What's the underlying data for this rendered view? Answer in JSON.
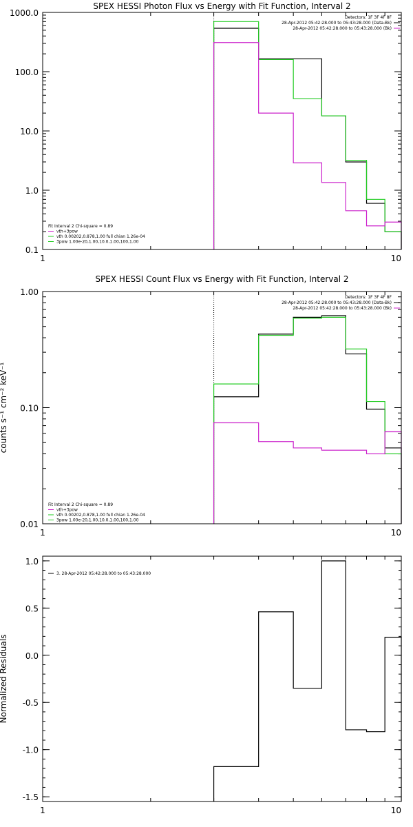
{
  "colors": {
    "data": "#000000",
    "bk": "#cc22cc",
    "fit": "#22cc22",
    "frame": "#000000"
  },
  "chart_data": [
    {
      "type": "line",
      "title": "SPEX HESSI Photon Flux vs Energy with Fit Function, Interval 2",
      "xlabel": "",
      "ylabel": "",
      "xscale": "log",
      "yscale": "log",
      "xlim": [
        1,
        10
      ],
      "ylim": [
        0.1,
        1000
      ],
      "xticks": [
        {
          "v": 1,
          "label": "1"
        },
        {
          "v": 10,
          "label": "10"
        }
      ],
      "yticks": [
        {
          "v": 0.1,
          "label": "0.1"
        },
        {
          "v": 1,
          "label": "1.0"
        },
        {
          "v": 10,
          "label": "10.0"
        },
        {
          "v": 100,
          "label": "100.0"
        },
        {
          "v": 1000,
          "label": "1000.0"
        }
      ],
      "bin_edges": [
        3,
        4,
        5,
        6,
        7,
        8,
        9,
        10
      ],
      "series": [
        {
          "color_key": "data",
          "values": [
            540,
            165,
            165,
            18,
            3.0,
            0.6,
            0.2
          ]
        },
        {
          "color_key": "fit",
          "values": [
            700,
            160,
            35,
            18,
            3.2,
            0.7,
            0.2
          ]
        },
        {
          "color_key": "bk",
          "values": [
            310,
            20,
            2.9,
            1.35,
            0.45,
            0.25,
            0.29
          ]
        }
      ],
      "vline": 3,
      "header": [
        "Detectors: 1F 3F 4F 8F",
        "28-Apr-2012 05:42:28.000 to 05:43:28.000 (Data-Bk)",
        "28-Apr-2012 05:42:28.000 to 05:43:28.000 (Bk)"
      ],
      "legend": [
        {
          "text": "Fit Interval 2   Chi-square = 0.89",
          "color_key": null
        },
        {
          "text": "vth+3pow",
          "color_key": "bk"
        },
        {
          "text": "vth 0.00202,0.878,1.00  full chian 1.26e-04",
          "color_key": "fit"
        },
        {
          "text": "3pow 1.00e-20,1.00,10.0,1.00,100,1.00",
          "color_key": "fit"
        }
      ]
    },
    {
      "type": "line",
      "title": "SPEX HESSI Count Flux vs Energy with Fit Function, Interval 2",
      "xlabel": "",
      "ylabel": "counts s⁻¹ cm⁻² keV⁻¹",
      "xscale": "log",
      "yscale": "log",
      "xlim": [
        1,
        10
      ],
      "ylim": [
        0.01,
        1.0
      ],
      "xticks": [
        {
          "v": 1,
          "label": "1"
        },
        {
          "v": 10,
          "label": "10"
        }
      ],
      "yticks": [
        {
          "v": 0.01,
          "label": "0.01"
        },
        {
          "v": 0.1,
          "label": "0.10"
        },
        {
          "v": 1,
          "label": "1.00"
        }
      ],
      "bin_edges": [
        3,
        4,
        5,
        6,
        7,
        8,
        9,
        10
      ],
      "series": [
        {
          "color_key": "data",
          "values": [
            0.124,
            0.43,
            0.6,
            0.62,
            0.29,
            0.097,
            0.045
          ]
        },
        {
          "color_key": "fit",
          "values": [
            0.16,
            0.42,
            0.59,
            0.6,
            0.32,
            0.113,
            0.04
          ]
        },
        {
          "color_key": "bk",
          "values": [
            0.074,
            0.051,
            0.045,
            0.043,
            0.043,
            0.04,
            0.062
          ]
        }
      ],
      "vline": 3,
      "header": [
        "Detectors: 1F 3F 4F 8F",
        "28-Apr-2012 05:42:28.000 to 05:43:28.000 (Data-Bk)",
        "28-Apr-2012 05:42:28.000 to 05:43:28.000 (Bk)"
      ],
      "legend": [
        {
          "text": "Fit Interval 2   Chi-square = 0.89",
          "color_key": null
        },
        {
          "text": "vth+3pow",
          "color_key": "bk"
        },
        {
          "text": "vth 0.00202,0.878,1.00  full chian 1.26e-04",
          "color_key": "fit"
        },
        {
          "text": "3pow 1.00e-20,1.00,10.0,1.00,100,1.00",
          "color_key": "fit"
        }
      ]
    },
    {
      "type": "line",
      "title": "",
      "xlabel": "",
      "ylabel": "Normalized Residuals",
      "xscale": "log",
      "yscale": "linear",
      "xlim": [
        1,
        10
      ],
      "ylim": [
        -1.55,
        1.05
      ],
      "xticks": [
        {
          "v": 1,
          "label": "1"
        },
        {
          "v": 10,
          "label": "10"
        }
      ],
      "yticks": [
        {
          "v": -1.5,
          "label": "-1.5"
        },
        {
          "v": -1.0,
          "label": "-1.0"
        },
        {
          "v": -0.5,
          "label": "-0.5"
        },
        {
          "v": 0.0,
          "label": "0.0"
        },
        {
          "v": 0.5,
          "label": "0.5"
        },
        {
          "v": 1.0,
          "label": "1.0"
        }
      ],
      "bin_edges": [
        3,
        4,
        5,
        6,
        7,
        8,
        9,
        10
      ],
      "series": [
        {
          "color_key": "data",
          "values": [
            -1.18,
            0.46,
            -0.35,
            1.0,
            -0.79,
            -0.81,
            0.19
          ]
        }
      ],
      "vline": null,
      "header": [],
      "legend": [
        {
          "text": "3. 28-Apr-2012 05:42:28.000 to 05:43:28.000",
          "color_key": "data"
        }
      ]
    }
  ]
}
